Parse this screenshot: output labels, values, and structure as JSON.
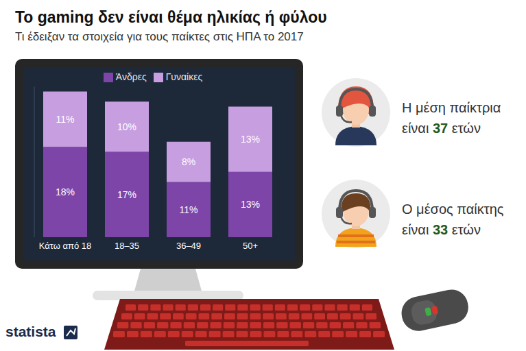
{
  "chart_data": {
    "type": "bar",
    "title": "Το gaming δεν είναι θέμα ηλικίας ή φύλου",
    "subtitle": "Τι έδειξαν τα στοιχεία για τους παίκτες στις ΗΠΑ το 2017",
    "categories": [
      "Κάτω από 18",
      "18–35",
      "36–49",
      "50+"
    ],
    "series": [
      {
        "name": "Άνδρες",
        "color": "#7d45a8",
        "values": [
          18,
          17,
          11,
          13
        ],
        "value_labels": [
          "18%",
          "17%",
          "11%",
          "13%"
        ]
      },
      {
        "name": "Γυναίκες",
        "color": "#c79ee0",
        "values": [
          11,
          10,
          8,
          13
        ],
        "value_labels": [
          "11%",
          "10%",
          "8%",
          "13%"
        ]
      }
    ],
    "stacked": true,
    "data_labels": true,
    "legend": "top",
    "tick_labels": "x",
    "grid": false,
    "ylim": [
      0,
      30
    ],
    "annotations": [
      {
        "label": "Η μέση παίκτρια είναι",
        "value": 37,
        "unit": "ετών"
      },
      {
        "label": "Ο μέσος παίκτης είναι",
        "value": 33,
        "unit": "ετών"
      }
    ],
    "source": "statista"
  }
}
